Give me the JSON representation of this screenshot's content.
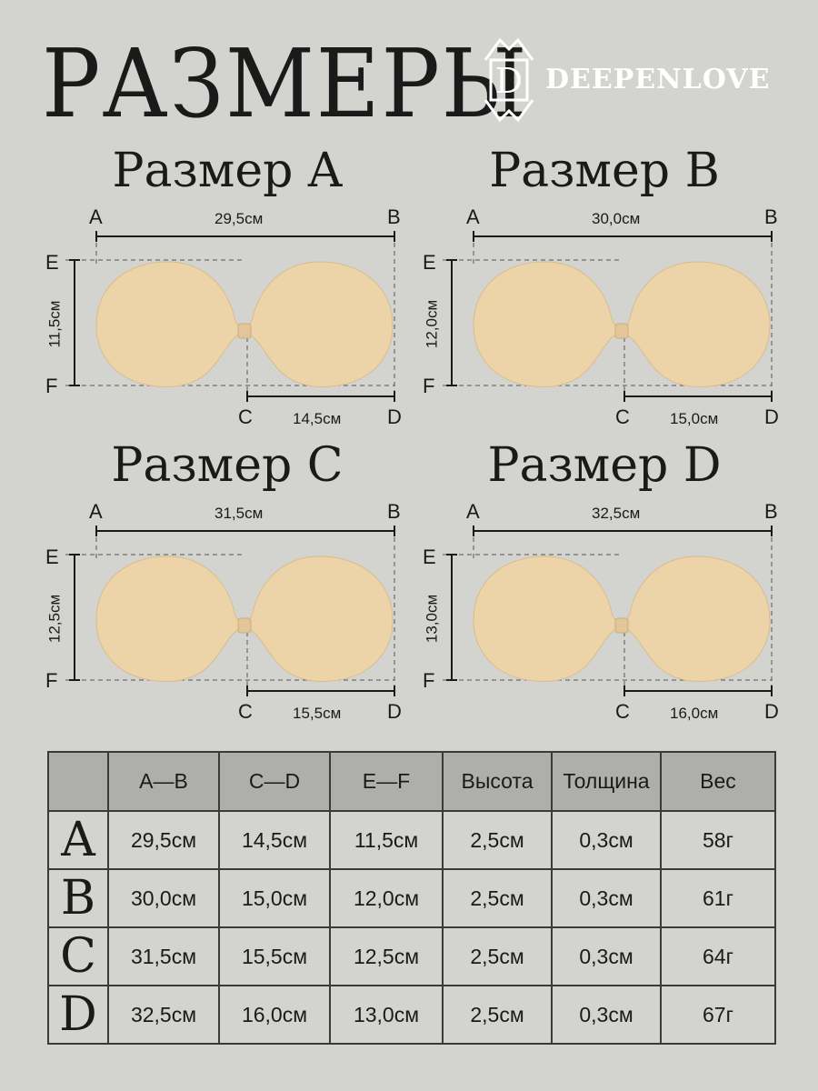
{
  "title": "РАЗМЕРЫ",
  "brand": "DEEPENLOVE",
  "logo_letter": "D",
  "panels": [
    {
      "title": "Размер A",
      "ab": "29,5см",
      "cd": "14,5см",
      "ef": "11,5см"
    },
    {
      "title": "Размер B",
      "ab": "30,0см",
      "cd": "15,0см",
      "ef": "12,0см"
    },
    {
      "title": "Размер C",
      "ab": "31,5см",
      "cd": "15,5см",
      "ef": "12,5см"
    },
    {
      "title": "Размер D",
      "ab": "32,5см",
      "cd": "16,0см",
      "ef": "13,0см"
    }
  ],
  "points": {
    "a": "A",
    "b": "B",
    "c": "C",
    "d": "D",
    "e": "E",
    "f": "F"
  },
  "table": {
    "headers": [
      "",
      "A—B",
      "C—D",
      "E—F",
      "Высота",
      "Толщина",
      "Вес"
    ],
    "rows": [
      [
        "A",
        "29,5см",
        "14,5см",
        "11,5см",
        "2,5см",
        "0,3см",
        "58г"
      ],
      [
        "B",
        "30,0см",
        "15,0см",
        "12,0см",
        "2,5см",
        "0,3см",
        "61г"
      ],
      [
        "C",
        "31,5см",
        "15,5см",
        "12,5см",
        "2,5см",
        "0,3см",
        "64г"
      ],
      [
        "D",
        "32,5см",
        "16,0см",
        "13,0см",
        "2,5см",
        "0,3см",
        "67г"
      ]
    ]
  },
  "colors": {
    "background": "#d3d3cf",
    "header_fill": "#aeaeab",
    "product": "#edd4a8",
    "ink": "#1a1a1a"
  }
}
